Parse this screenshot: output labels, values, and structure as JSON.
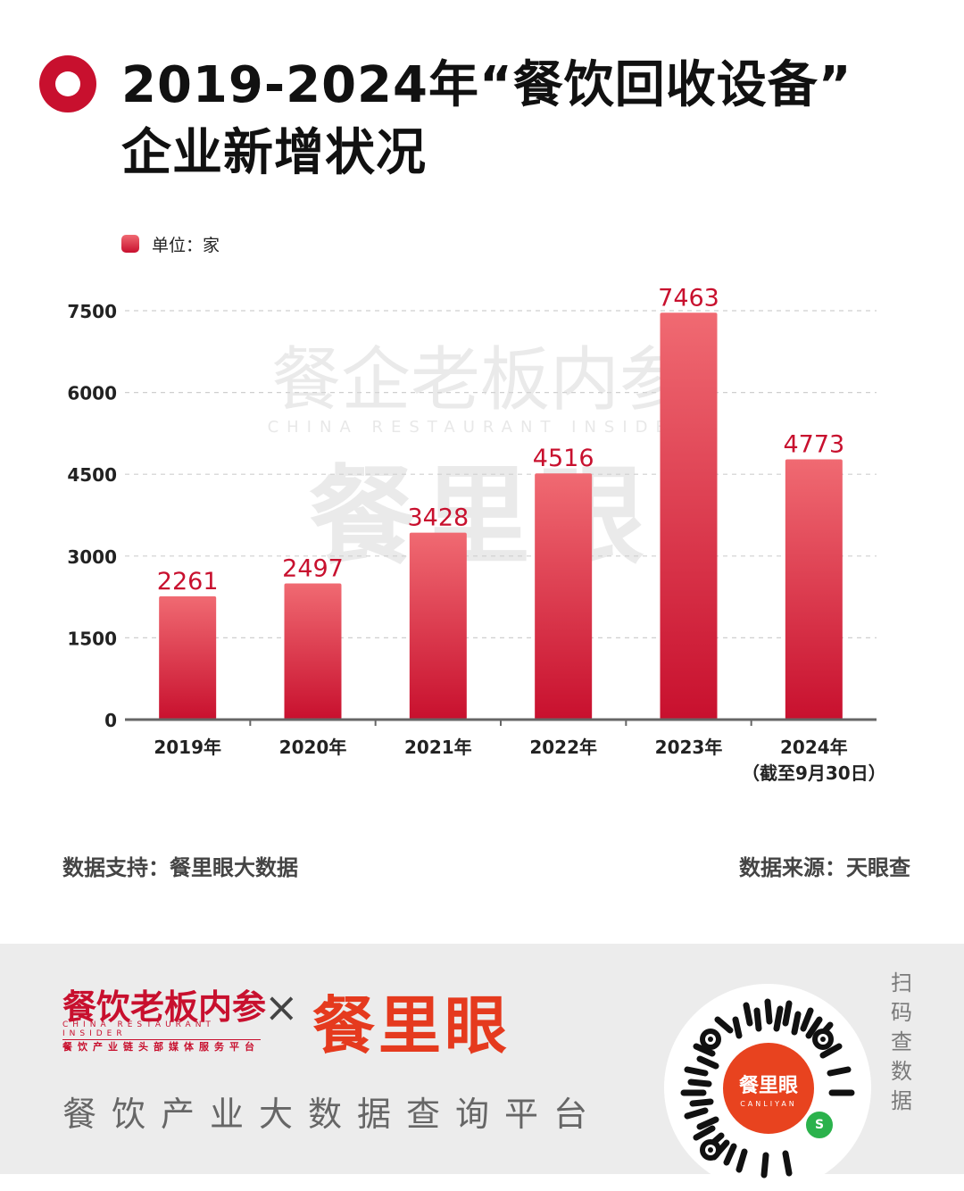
{
  "title": {
    "line1": "2019-2024年“餐饮回收设备”",
    "line2": "企业新增状况"
  },
  "legend": {
    "label": "单位：家",
    "color": "#c8102e"
  },
  "watermark": {
    "line1": "餐企老板内参",
    "line2": "CHINA RESTAURANT INSIDER",
    "line3": "餐里眼"
  },
  "chart_data": {
    "type": "bar",
    "categories": [
      "2019年",
      "2020年",
      "2021年",
      "2022年",
      "2023年",
      "2024年"
    ],
    "category_notes": [
      "",
      "",
      "",
      "",
      "",
      "（截至9月30日）"
    ],
    "values": [
      2261,
      2497,
      3428,
      4516,
      7463,
      4773
    ],
    "value_labels": [
      "2261",
      "2497",
      "3428",
      "4516",
      "7463",
      "4773"
    ],
    "yticks": [
      0,
      1500,
      3000,
      4500,
      6000,
      7500
    ],
    "ylim": [
      0,
      7500
    ],
    "grid": true,
    "bar_color_top": "#f06a72",
    "bar_color_bottom": "#c8102e",
    "label_color": "#c8102e"
  },
  "footer": {
    "support": "数据支持：餐里眼大数据",
    "source": "数据来源：天眼查"
  },
  "bottom": {
    "brand1": "餐饮老板内参",
    "brand1_en": "CHINA RESTAURANT INSIDER",
    "brand1_tagline": "餐饮产业链头部媒体服务平台",
    "cross": "×",
    "brand2": "餐里眼",
    "platform": "餐饮产业大数据查询平台",
    "qr_name": "餐里眼",
    "qr_pinyin": "CANLIYAN",
    "scan": "扫码查数据"
  }
}
